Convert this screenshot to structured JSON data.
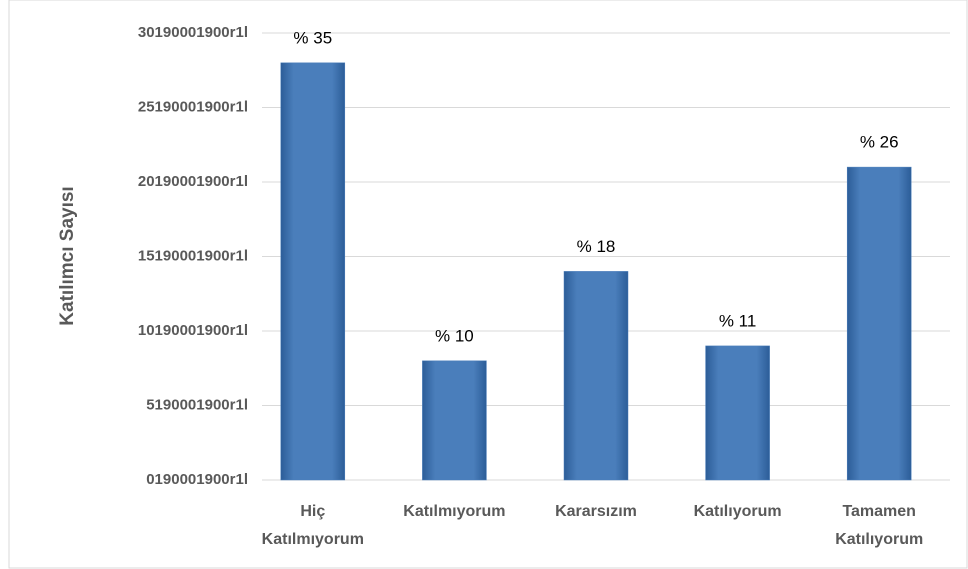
{
  "chart_data": {
    "type": "bar",
    "y_axis_label": "Katılımcı Sayısı",
    "categories": [
      "Hiç Katılmıyorum",
      "Katılmıyorum",
      "Kararsızım",
      "Katılıyorum",
      "Tamamen Katılıyorum"
    ],
    "values": [
      28,
      8,
      14,
      9,
      21
    ],
    "percent_labels": [
      "% 35",
      "% 10",
      "% 18",
      "% 11",
      "% 26"
    ],
    "color": "#4a7ebb",
    "ylim": [
      0,
      30
    ],
    "yticks": [
      {
        "value": 0,
        "label": "0190001900r1l"
      },
      {
        "value": 5,
        "label": "5190001900r1l"
      },
      {
        "value": 10,
        "label": "10190001900r1l"
      },
      {
        "value": 15,
        "label": "15190001900r1l"
      },
      {
        "value": 20,
        "label": "20190001900r1l"
      },
      {
        "value": 25,
        "label": "25190001900r1l"
      },
      {
        "value": 30,
        "label": "30190001900r1l"
      }
    ],
    "grid": true
  }
}
